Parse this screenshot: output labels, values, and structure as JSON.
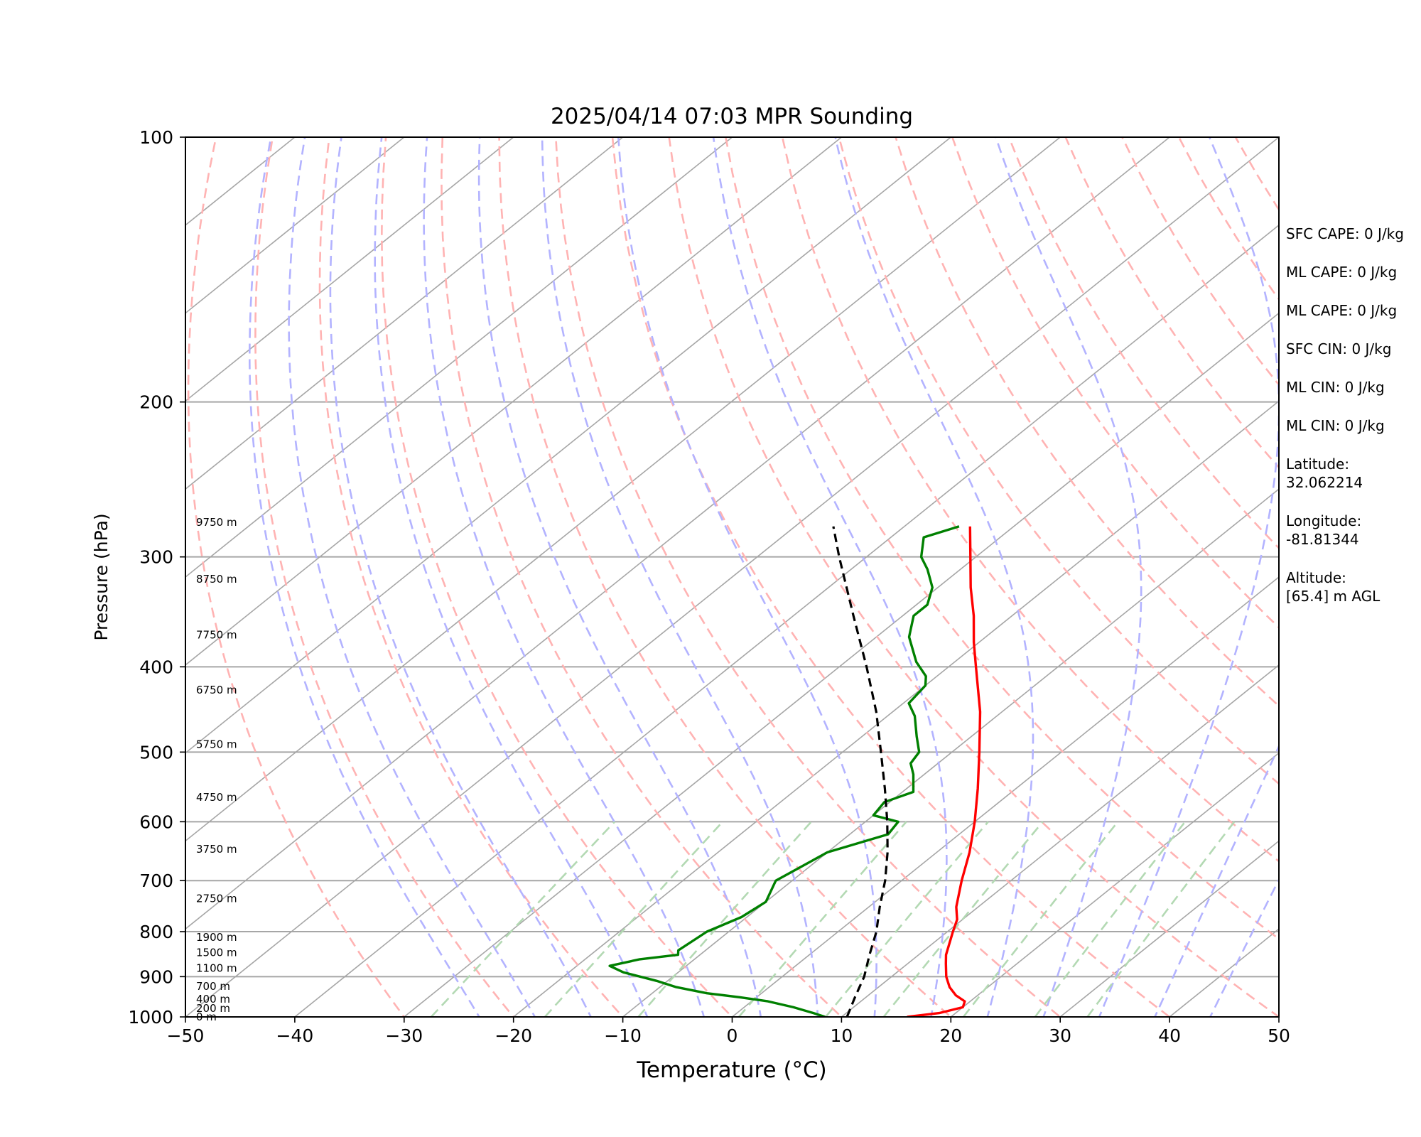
{
  "chart_data": {
    "type": "line",
    "title": "2025/04/14 07:03 MPR Sounding",
    "xlabel": "Temperature (°C)",
    "ylabel": "Pressure (hPa)",
    "xlim": [
      -50,
      50
    ],
    "ylim": [
      1000,
      100
    ],
    "y_scale": "log",
    "skew": true,
    "grid": true,
    "x_ticks": [
      "−50",
      "−40",
      "−30",
      "−20",
      "−10",
      "0",
      "10",
      "20",
      "30",
      "40",
      "50"
    ],
    "y_ticks": [
      "100",
      "200",
      "300",
      "400",
      "500",
      "600",
      "700",
      "800",
      "900",
      "1000"
    ],
    "series": [
      {
        "color": "#ff0000",
        "style": "solid",
        "points": [
          [
            1000,
            16.0
          ],
          [
            990,
            18.5
          ],
          [
            975,
            20.0
          ],
          [
            960,
            19.5
          ],
          [
            945,
            18.0
          ],
          [
            925,
            16.5
          ],
          [
            900,
            15.0
          ],
          [
            870,
            13.5
          ],
          [
            850,
            12.5
          ],
          [
            800,
            10.5
          ],
          [
            775,
            9.5
          ],
          [
            750,
            8.0
          ],
          [
            700,
            5.5
          ],
          [
            650,
            3.0
          ],
          [
            600,
            0.0
          ],
          [
            550,
            -3.5
          ],
          [
            500,
            -7.5
          ],
          [
            450,
            -12.0
          ],
          [
            400,
            -17.5
          ],
          [
            375,
            -20.5
          ],
          [
            350,
            -23.5
          ],
          [
            325,
            -27.0
          ],
          [
            300,
            -30.5
          ],
          [
            277,
            -34.0
          ]
        ]
      },
      {
        "color": "#008000",
        "style": "solid",
        "points": [
          [
            1000,
            8.5
          ],
          [
            990,
            7.0
          ],
          [
            975,
            4.5
          ],
          [
            960,
            1.5
          ],
          [
            950,
            -1.5
          ],
          [
            940,
            -5.0
          ],
          [
            925,
            -8.5
          ],
          [
            910,
            -11.0
          ],
          [
            890,
            -15.0
          ],
          [
            875,
            -17.0
          ],
          [
            860,
            -15.0
          ],
          [
            850,
            -12.0
          ],
          [
            840,
            -12.5
          ],
          [
            800,
            -12.0
          ],
          [
            770,
            -10.5
          ],
          [
            740,
            -10.0
          ],
          [
            700,
            -11.5
          ],
          [
            650,
            -10.0
          ],
          [
            620,
            -6.5
          ],
          [
            600,
            -7.0
          ],
          [
            590,
            -10.0
          ],
          [
            570,
            -10.5
          ],
          [
            555,
            -9.0
          ],
          [
            530,
            -11.0
          ],
          [
            515,
            -12.5
          ],
          [
            500,
            -13.0
          ],
          [
            480,
            -15.0
          ],
          [
            455,
            -17.5
          ],
          [
            440,
            -19.5
          ],
          [
            420,
            -20.0
          ],
          [
            410,
            -21.0
          ],
          [
            395,
            -23.5
          ],
          [
            370,
            -27.0
          ],
          [
            350,
            -29.0
          ],
          [
            340,
            -29.0
          ],
          [
            325,
            -30.5
          ],
          [
            310,
            -33.0
          ],
          [
            300,
            -35.0
          ],
          [
            285,
            -37.0
          ],
          [
            277,
            -35.0
          ]
        ]
      },
      {
        "color": "#000000",
        "style": "dashed",
        "points": [
          [
            1000,
            10.5
          ],
          [
            950,
            9.0
          ],
          [
            900,
            7.5
          ],
          [
            850,
            5.5
          ],
          [
            800,
            3.5
          ],
          [
            750,
            1.0
          ],
          [
            700,
            -1.5
          ],
          [
            650,
            -4.5
          ],
          [
            600,
            -8.0
          ],
          [
            550,
            -12.0
          ],
          [
            500,
            -16.5
          ],
          [
            450,
            -21.5
          ],
          [
            400,
            -27.5
          ],
          [
            350,
            -34.5
          ],
          [
            300,
            -42.5
          ],
          [
            277,
            -46.5
          ]
        ]
      }
    ],
    "height_labels": [
      "0 m",
      "200 m",
      "400 m",
      "700 m",
      "1100 m",
      "1500 m",
      "1900 m",
      "2750 m",
      "3750 m",
      "4750 m",
      "5750 m",
      "6750 m",
      "7750 m",
      "8750 m",
      "9750 m"
    ],
    "height_label_pressures": [
      1000,
      978,
      955,
      923,
      880,
      845,
      812,
      734,
      645,
      563,
      490,
      425,
      368,
      318,
      274
    ]
  },
  "side_info": {
    "sfc_cape": "SFC CAPE: 0 J/kg",
    "ml_cape_1": "ML CAPE: 0 J/kg",
    "ml_cape_2": "ML CAPE: 0 J/kg",
    "sfc_cin": "SFC CIN: 0 J/kg",
    "ml_cin_1": "ML CIN: 0 J/kg",
    "ml_cin_2": "ML CIN: 0 J/kg",
    "latitude": "Latitude:\n32.062214",
    "longitude": "Longitude:\n-81.81344",
    "altitude": "Altitude:\n[65.4] m AGL"
  },
  "colors": {
    "isotherm": "#a6a6a6",
    "dry_adiabat": "#ffb3b3",
    "moist_adiabat": "#b3b3ff",
    "mixing_ratio": "#b3d9b3"
  }
}
